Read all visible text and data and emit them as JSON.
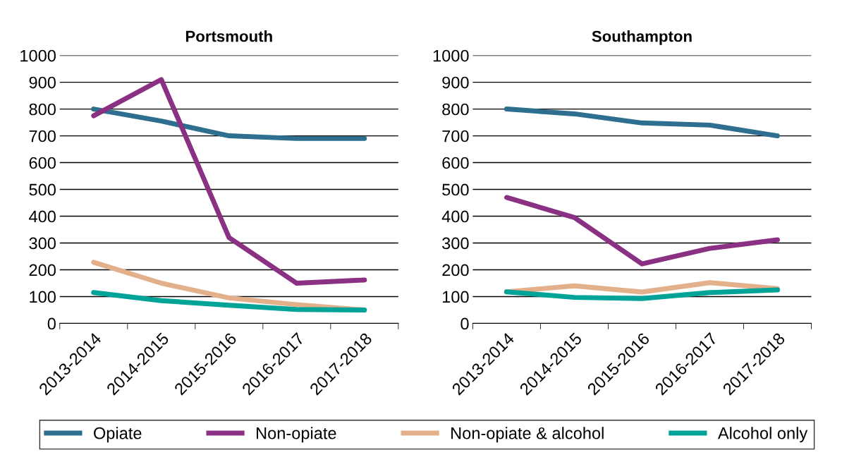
{
  "chart_data": [
    {
      "type": "line",
      "title": "Portsmouth",
      "categories": [
        "2013-2014",
        "2014-2015",
        "2015-2016",
        "2016-2017",
        "2017-2018"
      ],
      "ylim": [
        0,
        1000
      ],
      "yticks": [
        0,
        100,
        200,
        300,
        400,
        500,
        600,
        700,
        800,
        900,
        1000
      ],
      "grid": "y",
      "legend": "bottom",
      "marker": "none",
      "line_style": "solid",
      "series": [
        {
          "name": "Opiate",
          "color": "#2e6e8e",
          "values": [
            800,
            755,
            700,
            690,
            690
          ]
        },
        {
          "name": "Non-opiate",
          "color": "#8b3183",
          "values": [
            775,
            910,
            320,
            150,
            162
          ]
        },
        {
          "name": "Non-opiate & alcohol",
          "color": "#e3b08c",
          "values": [
            228,
            150,
            95,
            70,
            50
          ]
        },
        {
          "name": "Alcohol only",
          "color": "#00a398",
          "values": [
            115,
            85,
            68,
            52,
            50
          ]
        }
      ]
    },
    {
      "type": "line",
      "title": "Southampton",
      "categories": [
        "2013-2014",
        "2014-2015",
        "2015-2016",
        "2016-2017",
        "2017-2018"
      ],
      "ylim": [
        0,
        1000
      ],
      "yticks": [
        0,
        100,
        200,
        300,
        400,
        500,
        600,
        700,
        800,
        900,
        1000
      ],
      "grid": "y",
      "marker": "none",
      "line_style": "solid",
      "series": [
        {
          "name": "Opiate",
          "color": "#2e6e8e",
          "values": [
            800,
            782,
            748,
            740,
            700
          ]
        },
        {
          "name": "Non-opiate",
          "color": "#8b3183",
          "values": [
            470,
            395,
            222,
            280,
            312
          ]
        },
        {
          "name": "Non-opiate & alcohol",
          "color": "#e3b08c",
          "values": [
            118,
            140,
            117,
            152,
            130
          ]
        },
        {
          "name": "Alcohol only",
          "color": "#00a398",
          "values": [
            118,
            97,
            93,
            115,
            125
          ]
        }
      ]
    }
  ]
}
